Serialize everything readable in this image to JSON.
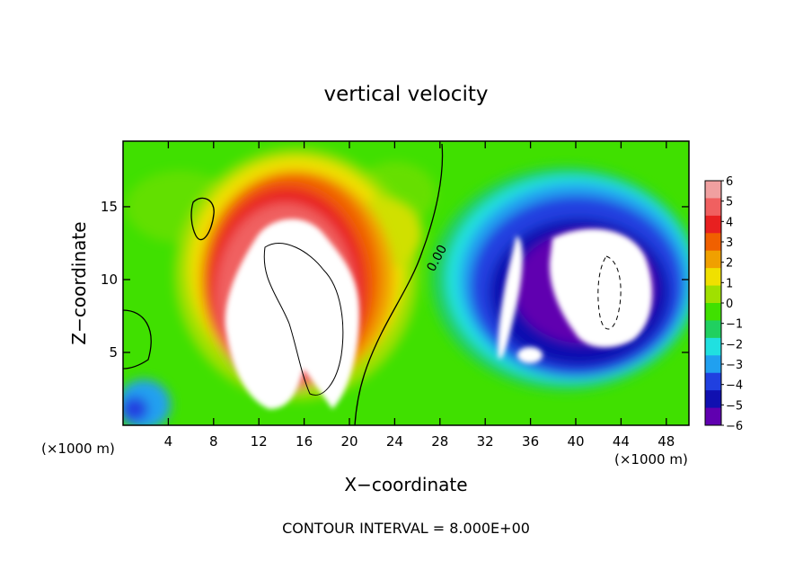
{
  "chart_data": {
    "type": "heatmap",
    "title": "vertical velocity",
    "xlabel": "X−coordinate",
    "ylabel": "Z−coordinate",
    "x_units_left": "(×1000 m)",
    "x_units_right": "(×1000 m)",
    "footer": "CONTOUR INTERVAL = 8.000E+00",
    "contour_label": "0.00",
    "xlim": [
      0,
      50
    ],
    "ylim": [
      0,
      19.5
    ],
    "x_ticks": [
      4,
      8,
      12,
      16,
      20,
      24,
      28,
      32,
      36,
      40,
      44,
      48
    ],
    "y_ticks": [
      5,
      10,
      15
    ],
    "colorbar": {
      "ticks": [
        6,
        5,
        4,
        3,
        2,
        1,
        0,
        -1,
        -2,
        -3,
        -4,
        -5,
        -6
      ],
      "tick_labels": [
        "6",
        "5",
        "4",
        "3",
        "2",
        "1",
        "0",
        "−1",
        "−2",
        "−3",
        "−4",
        "−5",
        "−6"
      ],
      "colors": [
        "#f0a0a0",
        "#f06060",
        "#e82020",
        "#f06000",
        "#f0a000",
        "#f0e000",
        "#a0e000",
        "#40e000",
        "#20d060",
        "#20e0e0",
        "#20a0f0",
        "#2040e0",
        "#1010b0",
        "#6000b0"
      ]
    },
    "features": [
      {
        "name": "updraft-core",
        "x": 15,
        "z": 10,
        "value": 8
      },
      {
        "name": "downdraft-core",
        "x": 40,
        "z": 10,
        "value": -8
      }
    ]
  }
}
